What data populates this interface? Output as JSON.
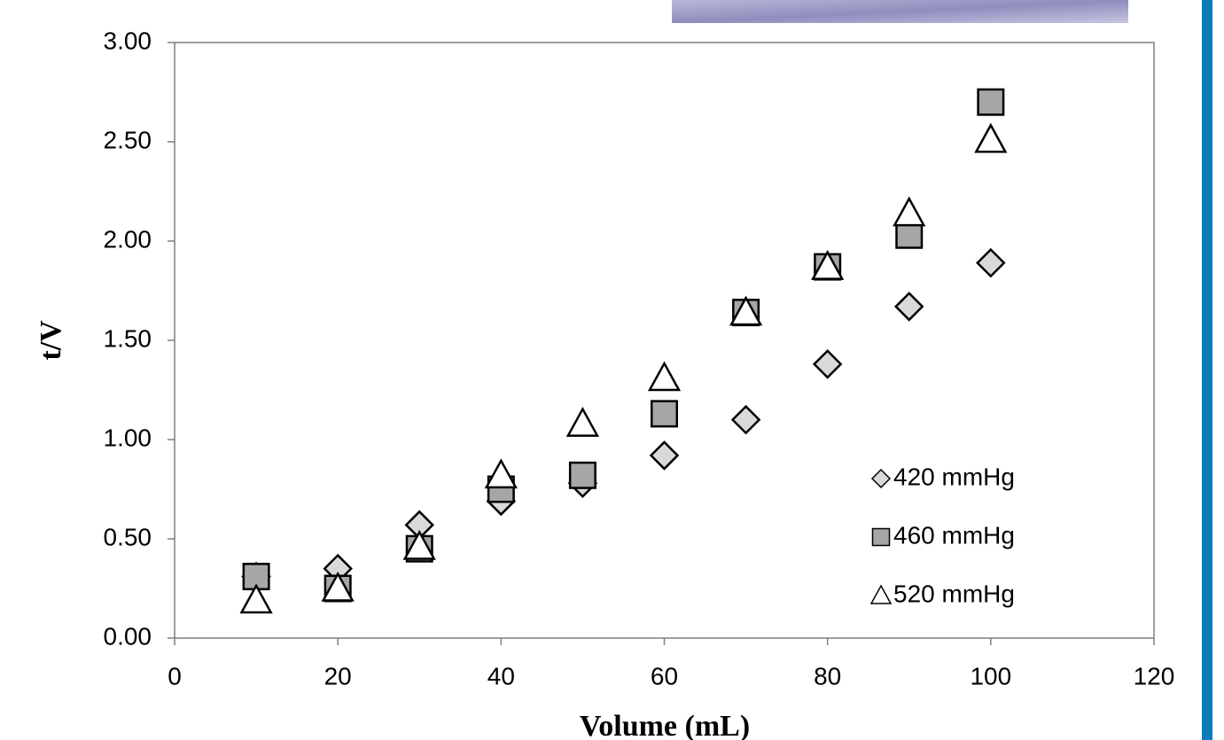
{
  "chart_data": {
    "type": "scatter",
    "x_label": "Volume (mL)",
    "y_label": "t/V",
    "x": [
      10,
      20,
      30,
      40,
      50,
      60,
      70,
      80,
      90,
      100
    ],
    "series": [
      {
        "name": "420 mmHg",
        "marker": "diamond",
        "color": "#d9d9d9",
        "values": [
          0.31,
          0.35,
          0.57,
          0.69,
          0.78,
          0.92,
          1.1,
          1.38,
          1.67,
          1.89
        ]
      },
      {
        "name": "460 mmHg",
        "marker": "square",
        "color": "#a6a6a6",
        "values": [
          0.31,
          0.25,
          0.45,
          0.75,
          0.82,
          1.13,
          1.64,
          1.87,
          2.03,
          2.7
        ]
      },
      {
        "name": "520 mmHg",
        "marker": "triangle",
        "color": "#ffffff",
        "values": [
          0.19,
          0.25,
          0.46,
          0.82,
          1.08,
          1.31,
          1.64,
          1.87,
          2.14,
          2.51
        ]
      }
    ],
    "xlim": [
      0,
      120
    ],
    "xticks": [
      0,
      20,
      40,
      60,
      80,
      100,
      120
    ],
    "ylim": [
      0,
      3
    ],
    "yticks": [
      {
        "value": 0,
        "label": "0.00"
      },
      {
        "value": 0.5,
        "label": "0.50"
      },
      {
        "value": 1,
        "label": "1.00"
      },
      {
        "value": 1.5,
        "label": "1.50"
      },
      {
        "value": 2,
        "label": "2.00"
      },
      {
        "value": 2.5,
        "label": "2.50"
      },
      {
        "value": 3,
        "label": "3.00"
      }
    ],
    "legend": "lower right"
  }
}
